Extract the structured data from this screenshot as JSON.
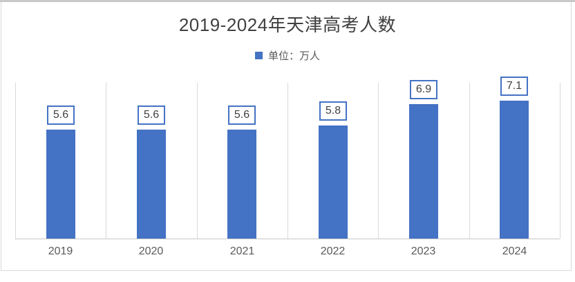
{
  "chart_data": {
    "type": "bar",
    "title": "2019-2024年天津高考人数",
    "legend": {
      "label": "单位：万人",
      "position": "top-center"
    },
    "categories": [
      "2019",
      "2020",
      "2021",
      "2022",
      "2023",
      "2024"
    ],
    "values": [
      5.6,
      5.6,
      5.6,
      5.8,
      6.9,
      7.1
    ],
    "ylim": [
      0,
      8.05
    ],
    "grid": "vertical category separators only, no y-axis tick labels",
    "data_labels": "boxed callouts above each bar"
  },
  "colors": {
    "bar": "#4472C4",
    "callout_border": "#4472C4",
    "gridline": "#D9D9D9",
    "axis_line": "#C6C6C6",
    "frame_border": "#D9D9D9",
    "top_strip": "#C8C8C8",
    "title_text": "#404040",
    "label_text": "#404040",
    "legend_text": "#595959",
    "axis_text": "#595959"
  }
}
